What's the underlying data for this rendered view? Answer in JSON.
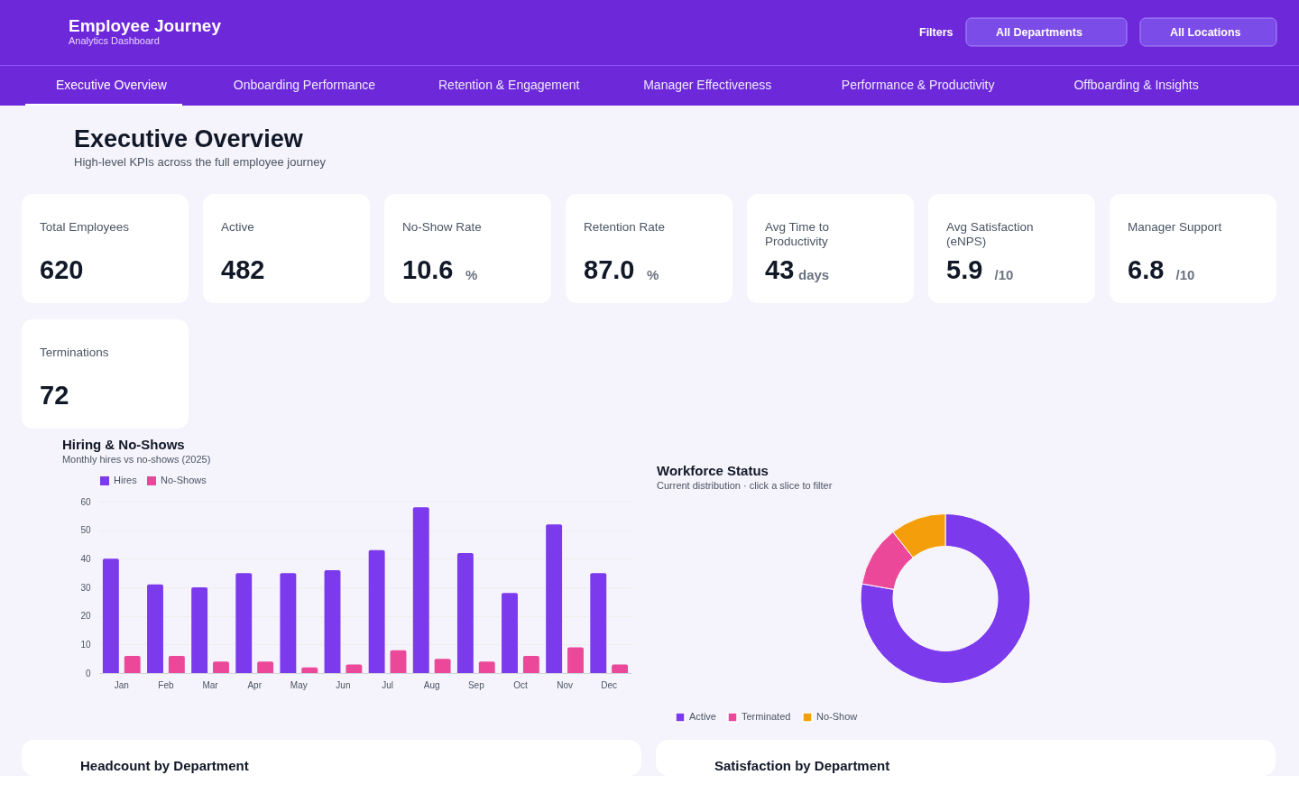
{
  "chart_data": [
    {
      "type": "other",
      "title": "Employee Journey",
      "subtitle": "Analytics Dashboard",
      "annotations": [
        "Filters",
        "All Departments",
        "All Locations",
        "Executive Overview",
        "Onboarding Performance",
        "Retention & Engagement",
        "Manager Effectiveness",
        "Performance & Productivity",
        "Offboarding & Insights"
      ]
    },
    {
      "type": "other",
      "title": "Executive Overview",
      "subtitle": "High-level KPIs across the full employee journey"
    },
    {
      "type": "other",
      "title": "Total Employees",
      "annotations": [
        "620"
      ]
    },
    {
      "type": "other",
      "title": "Active",
      "annotations": [
        "482"
      ]
    },
    {
      "type": "other",
      "title": "No-Show Rate",
      "annotations": [
        "10.6",
        "%"
      ]
    },
    {
      "type": "other",
      "title": "Retention Rate",
      "annotations": [
        "87.0",
        "%"
      ]
    },
    {
      "type": "other",
      "title": "Avg Time to Productivity",
      "annotations": [
        "43",
        "days"
      ]
    },
    {
      "type": "other",
      "title": "Avg Satisfaction (eNPS)",
      "annotations": [
        "5.9",
        "/10"
      ]
    },
    {
      "type": "other",
      "title": "Manager Support",
      "annotations": [
        "6.8",
        "/10"
      ]
    },
    {
      "type": "other",
      "title": "Terminations",
      "annotations": [
        "72"
      ]
    },
    {
      "type": "bar",
      "title": "Hiring & No-Shows",
      "subtitle": "Monthly hires vs no-shows (2025)",
      "categories": [
        "Jan",
        "Feb",
        "Mar",
        "Apr",
        "May",
        "Jun",
        "Jul",
        "Aug",
        "Sep",
        "Oct",
        "Nov",
        "Dec"
      ],
      "series": [
        {
          "name": "Hires",
          "color": "#7c3aed",
          "values": [
            40,
            31,
            30,
            35,
            35,
            36,
            43,
            58,
            42,
            28,
            52,
            35
          ]
        },
        {
          "name": "No-Shows",
          "color": "#ec4899",
          "values": [
            6,
            6,
            4,
            4,
            2,
            3,
            8,
            5,
            4,
            6,
            9,
            3
          ]
        }
      ],
      "ylim": [
        0,
        60
      ],
      "yticks": [
        0,
        10,
        20,
        30,
        40,
        50,
        60
      ],
      "grid": "y",
      "legend": "top"
    },
    {
      "type": "donut",
      "title": "Workforce Status",
      "subtitle": "Current distribution · click a slice to filter",
      "categories": [
        "Active",
        "Terminated",
        "No-Show"
      ],
      "values": [
        77.8,
        11.6,
        10.6
      ],
      "colors": [
        "#7c3aed",
        "#ec4899",
        "#f59e0b"
      ],
      "legend": "bottom"
    },
    {
      "type": "other",
      "title": "Headcount by Department"
    },
    {
      "type": "other",
      "title": "Satisfaction by Department"
    }
  ]
}
